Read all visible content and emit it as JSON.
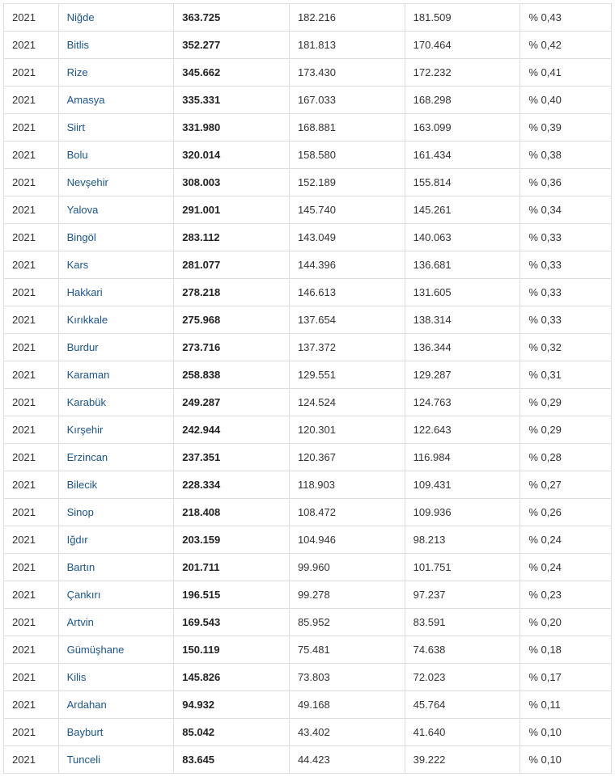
{
  "table": {
    "columns": [
      "year",
      "province",
      "total",
      "val1",
      "val2",
      "pct"
    ],
    "col_classes": [
      "col-year",
      "col-province",
      "col-total",
      "col-v1",
      "col-v2",
      "col-pct"
    ],
    "link_color": "#1a5490",
    "border_color": "#dddddd",
    "text_color": "#333333",
    "bold_column_index": 2,
    "link_column_index": 1,
    "rows": [
      {
        "year": "2021",
        "province": "Niğde",
        "total": "363.725",
        "val1": "182.216",
        "val2": "181.509",
        "pct": "% 0,43"
      },
      {
        "year": "2021",
        "province": "Bitlis",
        "total": "352.277",
        "val1": "181.813",
        "val2": "170.464",
        "pct": "% 0,42"
      },
      {
        "year": "2021",
        "province": "Rize",
        "total": "345.662",
        "val1": "173.430",
        "val2": "172.232",
        "pct": "% 0,41"
      },
      {
        "year": "2021",
        "province": "Amasya",
        "total": "335.331",
        "val1": "167.033",
        "val2": "168.298",
        "pct": "% 0,40"
      },
      {
        "year": "2021",
        "province": "Siirt",
        "total": "331.980",
        "val1": "168.881",
        "val2": "163.099",
        "pct": "% 0,39"
      },
      {
        "year": "2021",
        "province": "Bolu",
        "total": "320.014",
        "val1": "158.580",
        "val2": "161.434",
        "pct": "% 0,38"
      },
      {
        "year": "2021",
        "province": "Nevşehir",
        "total": "308.003",
        "val1": "152.189",
        "val2": "155.814",
        "pct": "% 0,36"
      },
      {
        "year": "2021",
        "province": "Yalova",
        "total": "291.001",
        "val1": "145.740",
        "val2": "145.261",
        "pct": "% 0,34"
      },
      {
        "year": "2021",
        "province": "Bingöl",
        "total": "283.112",
        "val1": "143.049",
        "val2": "140.063",
        "pct": "% 0,33"
      },
      {
        "year": "2021",
        "province": "Kars",
        "total": "281.077",
        "val1": "144.396",
        "val2": "136.681",
        "pct": "% 0,33"
      },
      {
        "year": "2021",
        "province": "Hakkari",
        "total": "278.218",
        "val1": "146.613",
        "val2": "131.605",
        "pct": "% 0,33"
      },
      {
        "year": "2021",
        "province": "Kırıkkale",
        "total": "275.968",
        "val1": "137.654",
        "val2": "138.314",
        "pct": "% 0,33"
      },
      {
        "year": "2021",
        "province": "Burdur",
        "total": "273.716",
        "val1": "137.372",
        "val2": "136.344",
        "pct": "% 0,32"
      },
      {
        "year": "2021",
        "province": "Karaman",
        "total": "258.838",
        "val1": "129.551",
        "val2": "129.287",
        "pct": "% 0,31"
      },
      {
        "year": "2021",
        "province": "Karabük",
        "total": "249.287",
        "val1": "124.524",
        "val2": "124.763",
        "pct": "% 0,29"
      },
      {
        "year": "2021",
        "province": "Kırşehir",
        "total": "242.944",
        "val1": "120.301",
        "val2": "122.643",
        "pct": "% 0,29"
      },
      {
        "year": "2021",
        "province": "Erzincan",
        "total": "237.351",
        "val1": "120.367",
        "val2": "116.984",
        "pct": "% 0,28"
      },
      {
        "year": "2021",
        "province": "Bilecik",
        "total": "228.334",
        "val1": "118.903",
        "val2": "109.431",
        "pct": "% 0,27"
      },
      {
        "year": "2021",
        "province": "Sinop",
        "total": "218.408",
        "val1": "108.472",
        "val2": "109.936",
        "pct": "% 0,26"
      },
      {
        "year": "2021",
        "province": "Iğdır",
        "total": "203.159",
        "val1": "104.946",
        "val2": "98.213",
        "pct": "% 0,24"
      },
      {
        "year": "2021",
        "province": "Bartın",
        "total": "201.711",
        "val1": "99.960",
        "val2": "101.751",
        "pct": "% 0,24"
      },
      {
        "year": "2021",
        "province": "Çankırı",
        "total": "196.515",
        "val1": "99.278",
        "val2": "97.237",
        "pct": "% 0,23"
      },
      {
        "year": "2021",
        "province": "Artvin",
        "total": "169.543",
        "val1": "85.952",
        "val2": "83.591",
        "pct": "% 0,20"
      },
      {
        "year": "2021",
        "province": "Gümüşhane",
        "total": "150.119",
        "val1": "75.481",
        "val2": "74.638",
        "pct": "% 0,18"
      },
      {
        "year": "2021",
        "province": "Kilis",
        "total": "145.826",
        "val1": "73.803",
        "val2": "72.023",
        "pct": "% 0,17"
      },
      {
        "year": "2021",
        "province": "Ardahan",
        "total": "94.932",
        "val1": "49.168",
        "val2": "45.764",
        "pct": "% 0,11"
      },
      {
        "year": "2021",
        "province": "Bayburt",
        "total": "85.042",
        "val1": "43.402",
        "val2": "41.640",
        "pct": "% 0,10"
      },
      {
        "year": "2021",
        "province": "Tunceli",
        "total": "83.645",
        "val1": "44.423",
        "val2": "39.222",
        "pct": "% 0,10"
      }
    ]
  }
}
